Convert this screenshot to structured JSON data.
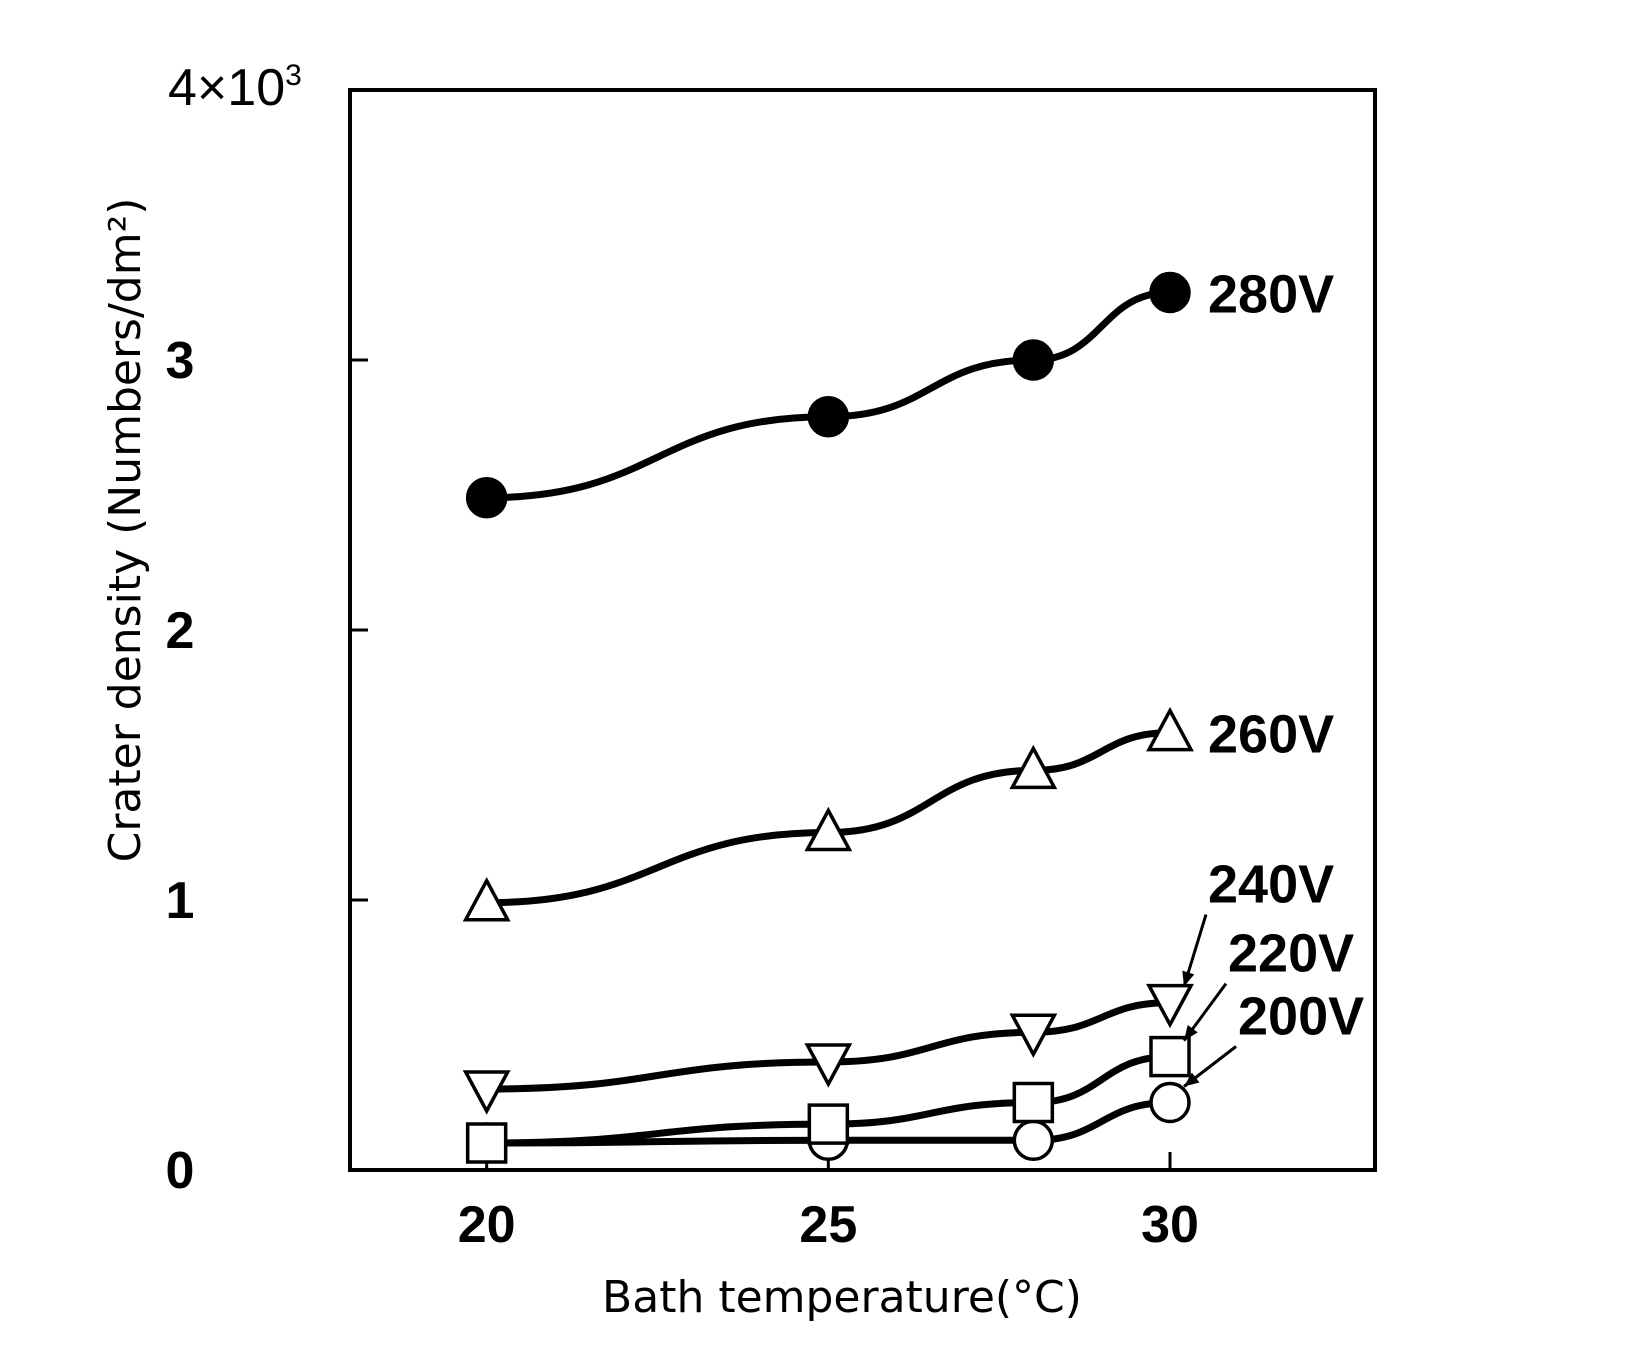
{
  "chart_data": {
    "type": "line",
    "xlabel": "Bath temperature(°C)",
    "ylabel": "Crater density (Numbers/dm²)",
    "xlim": [
      18,
      33
    ],
    "ylim": [
      0,
      4000
    ],
    "x_ticks": [
      {
        "value": 20,
        "label": "20"
      },
      {
        "value": 25,
        "label": "25"
      },
      {
        "value": 30,
        "label": "30"
      }
    ],
    "y_ticks": [
      {
        "value": 0,
        "label": "0"
      },
      {
        "value": 1000,
        "label": "1"
      },
      {
        "value": 2000,
        "label": "2"
      },
      {
        "value": 3000,
        "label": "3"
      }
    ],
    "y_max_label": {
      "base": "4×10",
      "exponent": "3"
    },
    "grid": false,
    "series": [
      {
        "name": "280V",
        "marker": "filled-circle",
        "x": [
          20,
          25,
          28,
          30
        ],
        "y": [
          2490,
          2790,
          3000,
          3250
        ]
      },
      {
        "name": "260V",
        "marker": "triangle-up",
        "x": [
          20,
          25,
          28,
          30
        ],
        "y": [
          990,
          1250,
          1480,
          1620
        ]
      },
      {
        "name": "240V",
        "marker": "triangle-down",
        "x": [
          20,
          25,
          28,
          30
        ],
        "y": [
          300,
          400,
          510,
          620
        ]
      },
      {
        "name": "220V",
        "marker": "square",
        "x": [
          20,
          25,
          28,
          30
        ],
        "y": [
          100,
          170,
          250,
          420
        ]
      },
      {
        "name": "200V",
        "marker": "open-circle",
        "x": [
          20,
          25,
          28,
          30
        ],
        "y": [
          100,
          110,
          110,
          250
        ]
      }
    ]
  }
}
